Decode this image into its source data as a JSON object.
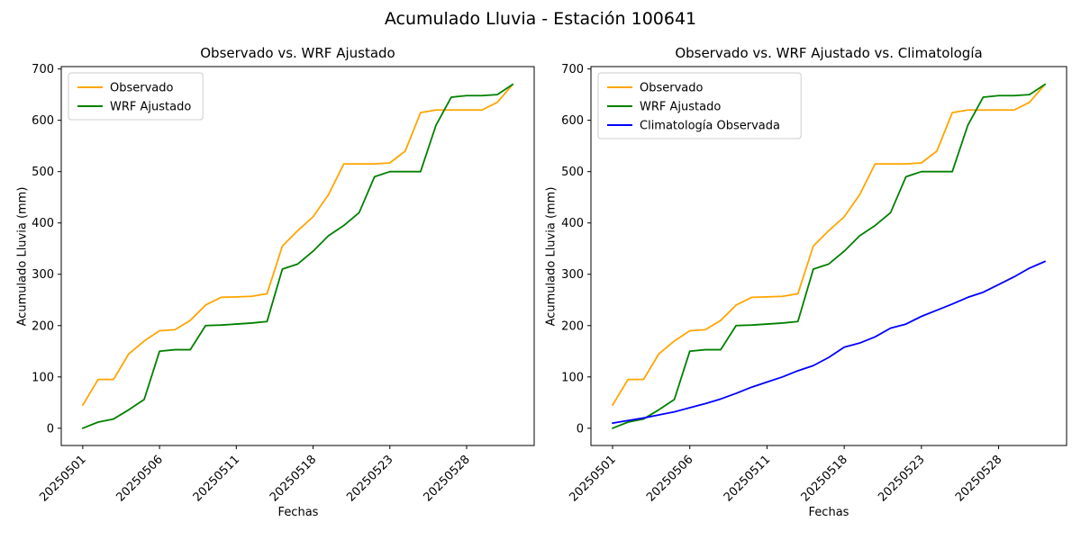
{
  "figure": {
    "title": "Acumulado Lluvia - Estación 100641"
  },
  "chart_data": [
    {
      "type": "line",
      "title": "Observado vs. WRF Ajustado",
      "xlabel": "Fechas",
      "ylabel": "Acumulado Lluvia (mm)",
      "ylim": [
        0,
        700
      ],
      "yticks": [
        0,
        100,
        200,
        300,
        400,
        500,
        600,
        700
      ],
      "n_points": 29,
      "x_tick_positions": [
        0,
        5,
        10,
        15,
        20,
        25
      ],
      "x_tick_labels": [
        "20250501",
        "20250506",
        "20250511",
        "20250518",
        "20250523",
        "20250528"
      ],
      "grid": false,
      "legend_position": "upper left",
      "series": [
        {
          "name": "Observado",
          "color": "#FFA500",
          "values": [
            45,
            95,
            95,
            145,
            170,
            190,
            192,
            210,
            240,
            255,
            256,
            257,
            262,
            355,
            385,
            412,
            455,
            515,
            515,
            515,
            517,
            540,
            615,
            620,
            620,
            620,
            620,
            635,
            670
          ]
        },
        {
          "name": "WRF Ajustado",
          "color": "#008000",
          "values": [
            0,
            12,
            18,
            36,
            56,
            150,
            153,
            153,
            200,
            201,
            203,
            205,
            208,
            310,
            320,
            345,
            375,
            395,
            420,
            490,
            500,
            500,
            500,
            590,
            645,
            648,
            648,
            650,
            670
          ]
        }
      ]
    },
    {
      "type": "line",
      "title": "Observado vs. WRF Ajustado vs. Climatología",
      "xlabel": "Fechas",
      "ylabel": "Acumulado Lluvia (mm)",
      "ylim": [
        0,
        700
      ],
      "yticks": [
        0,
        100,
        200,
        300,
        400,
        500,
        600,
        700
      ],
      "n_points": 29,
      "x_tick_positions": [
        0,
        5,
        10,
        15,
        20,
        25
      ],
      "x_tick_labels": [
        "20250501",
        "20250506",
        "20250511",
        "20250518",
        "20250523",
        "20250528"
      ],
      "grid": false,
      "legend_position": "upper left",
      "series": [
        {
          "name": "Observado",
          "color": "#FFA500",
          "values": [
            45,
            95,
            95,
            145,
            170,
            190,
            192,
            210,
            240,
            255,
            256,
            257,
            262,
            355,
            385,
            412,
            455,
            515,
            515,
            515,
            517,
            540,
            615,
            620,
            620,
            620,
            620,
            635,
            670
          ]
        },
        {
          "name": "WRF Ajustado",
          "color": "#008000",
          "values": [
            0,
            12,
            18,
            36,
            56,
            150,
            153,
            153,
            200,
            201,
            203,
            205,
            208,
            310,
            320,
            345,
            375,
            395,
            420,
            490,
            500,
            500,
            500,
            590,
            645,
            648,
            648,
            650,
            670
          ]
        },
        {
          "name": "Climatología Observada",
          "color": "#0000FF",
          "values": [
            10,
            15,
            20,
            26,
            32,
            40,
            48,
            57,
            68,
            80,
            90,
            100,
            112,
            122,
            138,
            158,
            166,
            178,
            195,
            203,
            218,
            230,
            242,
            255,
            265,
            280,
            295,
            312,
            325
          ]
        }
      ]
    }
  ]
}
